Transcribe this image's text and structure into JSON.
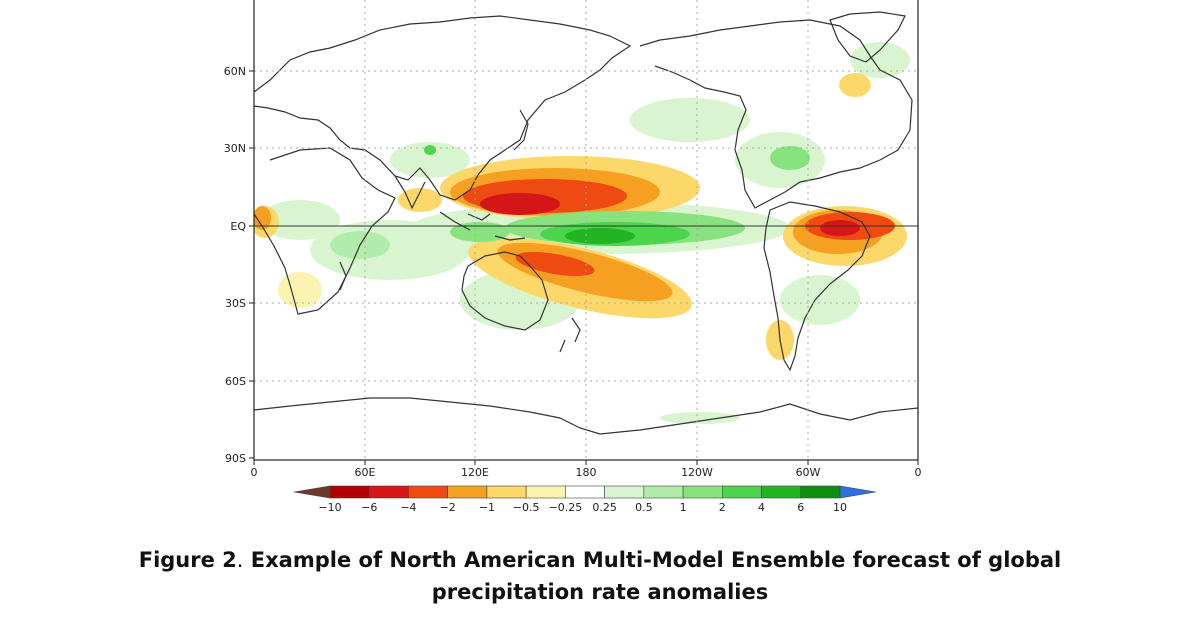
{
  "figure": {
    "lat_labels": [
      "60N",
      "30N",
      "EQ",
      "30S",
      "60S",
      "90S"
    ],
    "lon_labels": [
      "0",
      "60E",
      "120E",
      "180",
      "120W",
      "60W",
      "0"
    ],
    "colorbar": {
      "levels": [
        "−10",
        "−6",
        "−4",
        "−2",
        "−1",
        "−0.5",
        "−0.25",
        "0.25",
        "0.5",
        "1",
        "2",
        "4",
        "6",
        "10"
      ],
      "colors": [
        "#6b3a2a",
        "#b00000",
        "#d41616",
        "#ee4a12",
        "#f5a020",
        "#fcd76a",
        "#fdf3b0",
        "#ffffff",
        "#d8f5d0",
        "#b2ecaa",
        "#88e27e",
        "#4cd44c",
        "#22b422",
        "#0e8e0e",
        "#2f6fde"
      ]
    }
  },
  "caption": {
    "lead": "Figure 2",
    "separator": ".",
    "line1": " Example of North American Multi-Model Ensemble forecast of global",
    "line2": "precipitation rate anomalies"
  }
}
